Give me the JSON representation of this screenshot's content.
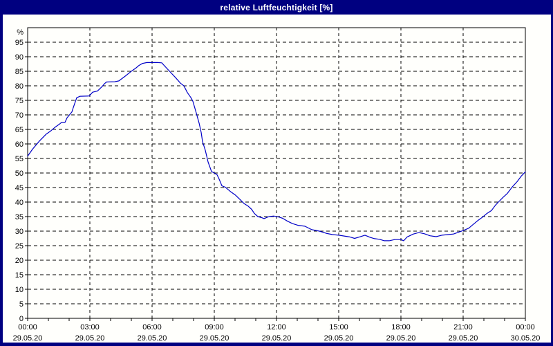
{
  "window": {
    "title": "relative Luftfeuchtigkeit [%]",
    "title_bar_color": "#000080",
    "frame_color": "#000080",
    "background_color": "#fffffc"
  },
  "chart_data": {
    "type": "line",
    "title": "relative Luftfeuchtigkeit [%]",
    "ylabel": "%",
    "y_unit_label": "%",
    "ylim": [
      0,
      100
    ],
    "y_ticks": [
      0,
      5,
      10,
      15,
      20,
      25,
      30,
      35,
      40,
      45,
      50,
      55,
      60,
      65,
      70,
      75,
      80,
      85,
      90,
      95
    ],
    "x_range_hours": [
      0,
      24
    ],
    "x_minor_tick_hours": 1,
    "grid": true,
    "legend": "none",
    "line_color": "#0000c8",
    "grid_color": "#000000",
    "axis_color": "#000000",
    "x_ticks": [
      {
        "hour": 0,
        "time": "00:00",
        "date": "29.05.20"
      },
      {
        "hour": 3,
        "time": "03:00",
        "date": "29.05.20"
      },
      {
        "hour": 6,
        "time": "06:00",
        "date": "29.05.20"
      },
      {
        "hour": 9,
        "time": "09:00",
        "date": "29.05.20"
      },
      {
        "hour": 12,
        "time": "12:00",
        "date": "29.05.20"
      },
      {
        "hour": 15,
        "time": "15:00",
        "date": "29.05.20"
      },
      {
        "hour": 18,
        "time": "18:00",
        "date": "29.05.20"
      },
      {
        "hour": 21,
        "time": "21:00",
        "date": "29.05.20"
      },
      {
        "hour": 24,
        "time": "00:00",
        "date": "30.05.20"
      }
    ],
    "series": [
      {
        "name": "relative Luftfeuchtigkeit [%]",
        "points": [
          [
            0,
            55.8
          ],
          [
            14,
            58.2
          ],
          [
            34,
            61.0
          ],
          [
            54,
            63.4
          ],
          [
            68,
            64.6
          ],
          [
            80,
            65.8
          ],
          [
            94,
            67.0
          ],
          [
            98,
            67.4
          ],
          [
            108,
            67.4
          ],
          [
            114,
            69.0
          ],
          [
            128,
            71.0
          ],
          [
            132,
            72.5
          ],
          [
            142,
            75.9
          ],
          [
            152,
            76.4
          ],
          [
            178,
            76.5
          ],
          [
            188,
            77.8
          ],
          [
            202,
            78.2
          ],
          [
            216,
            79.8
          ],
          [
            222,
            80.7
          ],
          [
            228,
            81.3
          ],
          [
            252,
            81.4
          ],
          [
            264,
            81.7
          ],
          [
            282,
            83.3
          ],
          [
            302,
            85.2
          ],
          [
            314,
            86.2
          ],
          [
            322,
            87.0
          ],
          [
            332,
            87.7
          ],
          [
            345,
            88.0
          ],
          [
            375,
            88.0
          ],
          [
            388,
            87.9
          ],
          [
            402,
            86.1
          ],
          [
            416,
            84.3
          ],
          [
            428,
            82.8
          ],
          [
            442,
            80.9
          ],
          [
            452,
            80.0
          ],
          [
            462,
            77.7
          ],
          [
            472,
            76.0
          ],
          [
            478,
            74.7
          ],
          [
            488,
            70.6
          ],
          [
            496,
            67.2
          ],
          [
            502,
            64.0
          ],
          [
            506,
            60.8
          ],
          [
            514,
            57.8
          ],
          [
            522,
            53.8
          ],
          [
            532,
            50.5
          ],
          [
            540,
            50.0
          ],
          [
            548,
            49.4
          ],
          [
            554,
            47.9
          ],
          [
            562,
            45.6
          ],
          [
            572,
            45.1
          ],
          [
            588,
            43.5
          ],
          [
            602,
            42.3
          ],
          [
            616,
            40.7
          ],
          [
            626,
            39.5
          ],
          [
            638,
            38.6
          ],
          [
            648,
            37.5
          ],
          [
            656,
            36.1
          ],
          [
            666,
            35.0
          ],
          [
            678,
            34.6
          ],
          [
            684,
            34.3
          ],
          [
            698,
            35.0
          ],
          [
            712,
            35.2
          ],
          [
            728,
            34.8
          ],
          [
            738,
            34.4
          ],
          [
            752,
            33.4
          ],
          [
            766,
            32.6
          ],
          [
            782,
            32.0
          ],
          [
            802,
            31.7
          ],
          [
            822,
            30.5
          ],
          [
            844,
            30.0
          ],
          [
            866,
            29.2
          ],
          [
            882,
            28.8
          ],
          [
            900,
            28.6
          ],
          [
            916,
            28.3
          ],
          [
            932,
            28.0
          ],
          [
            946,
            27.5
          ],
          [
            960,
            28.0
          ],
          [
            976,
            28.6
          ],
          [
            992,
            27.8
          ],
          [
            1004,
            27.4
          ],
          [
            1018,
            27.2
          ],
          [
            1032,
            26.7
          ],
          [
            1046,
            26.7
          ],
          [
            1062,
            27.1
          ],
          [
            1080,
            27.1
          ],
          [
            1088,
            26.7
          ],
          [
            1098,
            28.0
          ],
          [
            1116,
            29.0
          ],
          [
            1132,
            29.5
          ],
          [
            1148,
            29.1
          ],
          [
            1164,
            28.4
          ],
          [
            1182,
            28.1
          ],
          [
            1198,
            28.6
          ],
          [
            1216,
            28.8
          ],
          [
            1232,
            29.0
          ],
          [
            1246,
            29.6
          ],
          [
            1260,
            30.2
          ],
          [
            1276,
            31.0
          ],
          [
            1290,
            32.4
          ],
          [
            1302,
            33.6
          ],
          [
            1316,
            34.8
          ],
          [
            1328,
            36.0
          ],
          [
            1342,
            37.1
          ],
          [
            1354,
            39.0
          ],
          [
            1362,
            40.0
          ],
          [
            1376,
            41.7
          ],
          [
            1388,
            43.0
          ],
          [
            1402,
            45.2
          ],
          [
            1416,
            47.0
          ],
          [
            1428,
            48.9
          ],
          [
            1440,
            50.4
          ]
        ]
      }
    ]
  }
}
